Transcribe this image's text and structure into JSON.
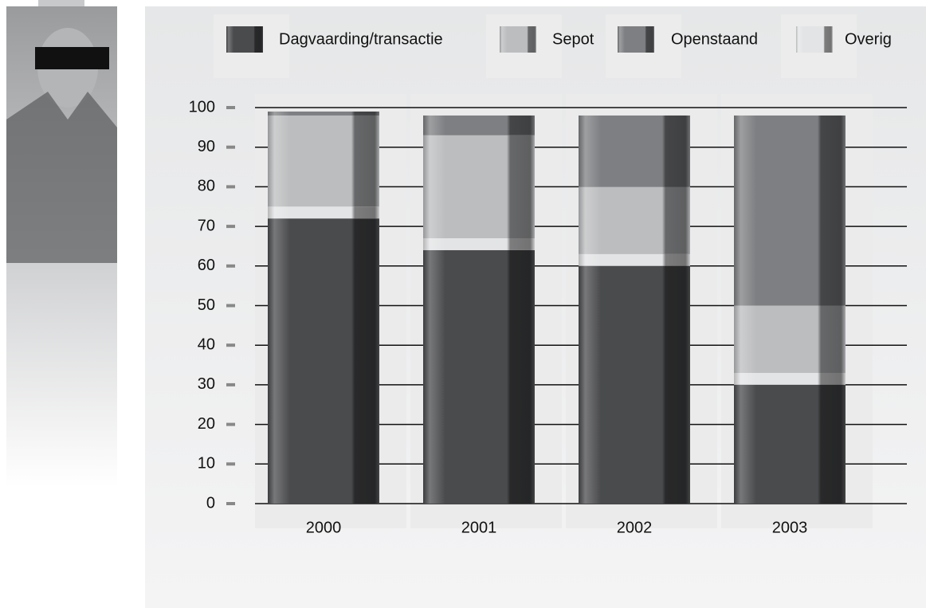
{
  "chart_data": {
    "type": "bar",
    "stacked": true,
    "categories": [
      "2000",
      "2001",
      "2002",
      "2003"
    ],
    "series": [
      {
        "name": "Dagvaarding/transactie",
        "color": "#4a4b4d",
        "values": [
          72,
          64,
          60,
          30
        ]
      },
      {
        "name": "Overig",
        "color": "#e3e4e5",
        "values": [
          3,
          3,
          3,
          3
        ]
      },
      {
        "name": "Sepot",
        "color": "#bcbdbf",
        "values": [
          23,
          26,
          17,
          17
        ]
      },
      {
        "name": "Openstaand",
        "color": "#7e7f82",
        "values": [
          1,
          5,
          18,
          48
        ]
      }
    ],
    "ylim": [
      0,
      100
    ],
    "yticks": [
      0,
      10,
      20,
      30,
      40,
      50,
      60,
      70,
      80,
      90,
      100
    ],
    "grid": true
  }
}
